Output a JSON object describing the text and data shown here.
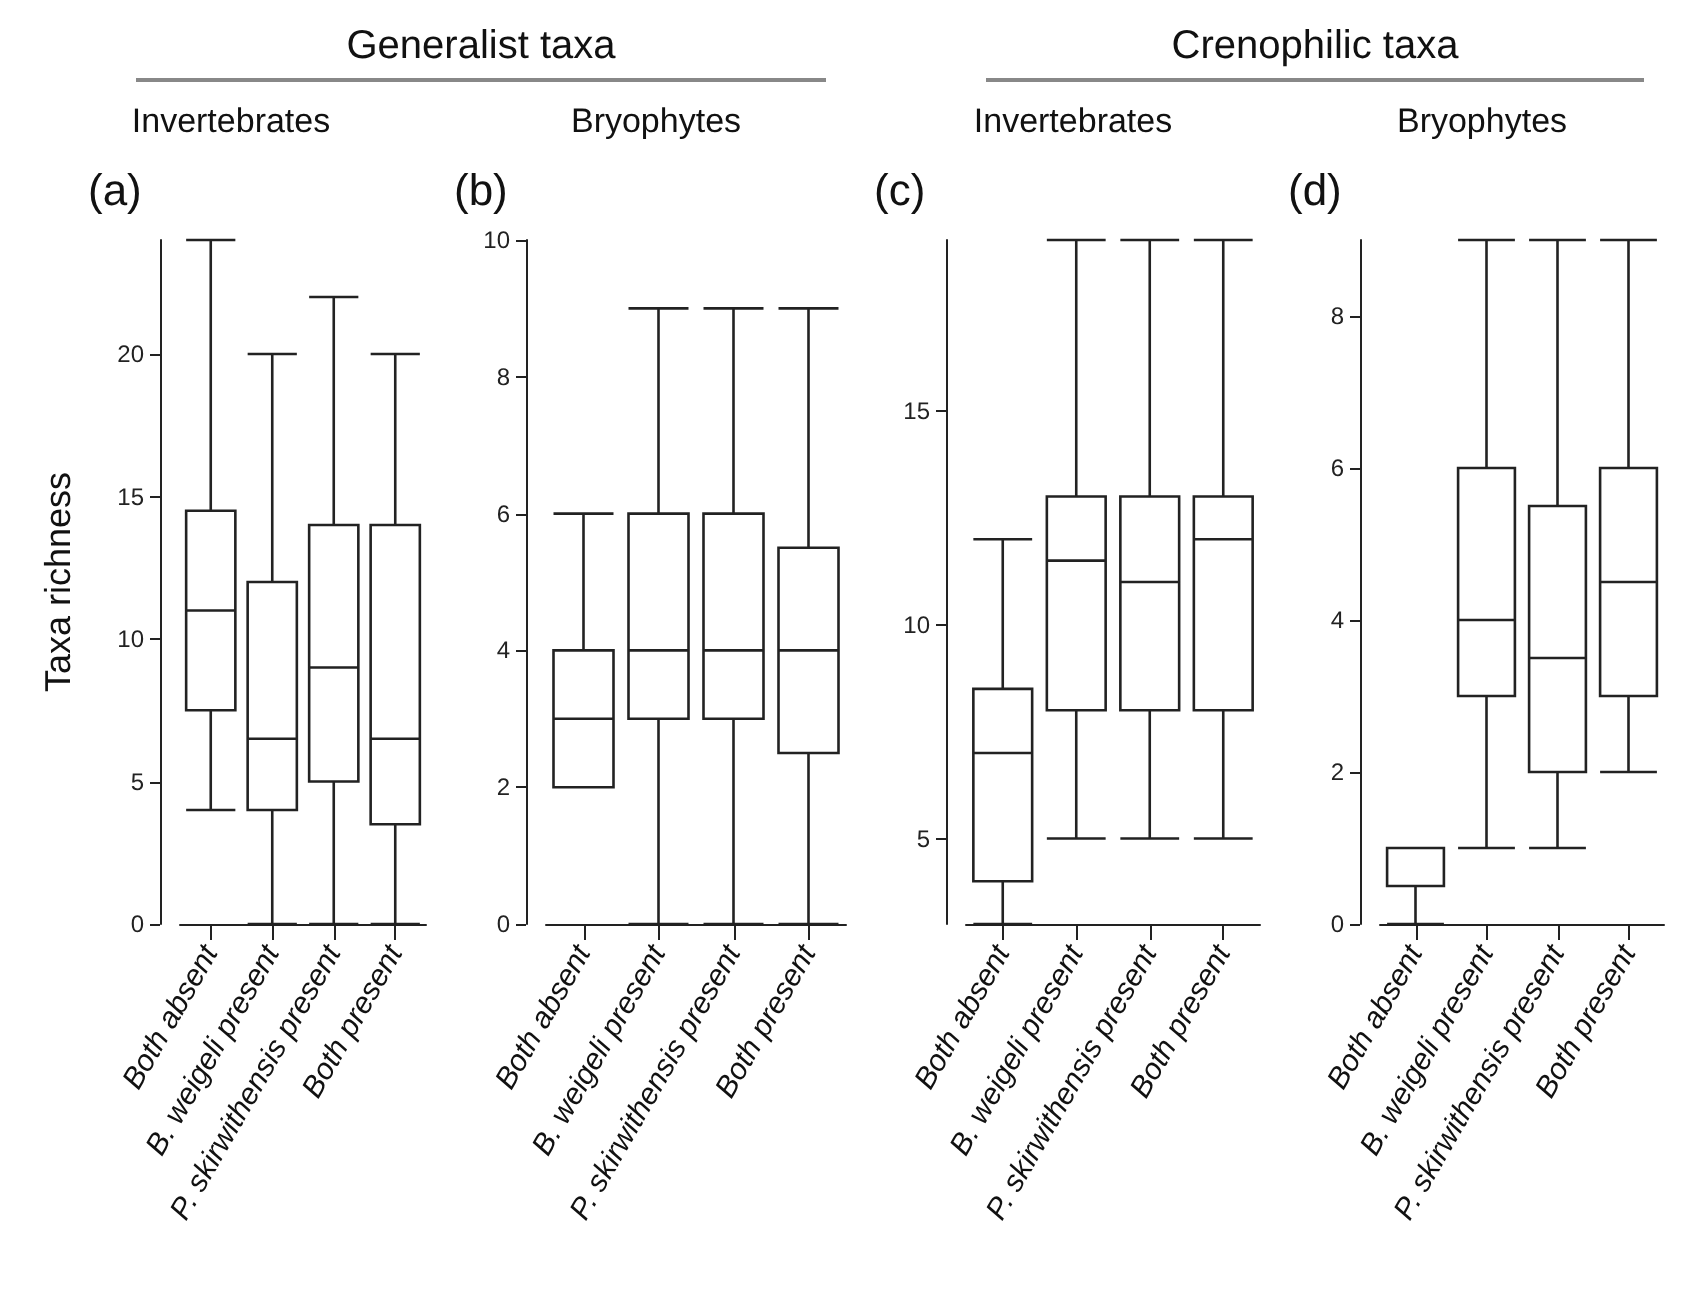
{
  "chart_data": [
    {
      "type": "box",
      "title": "Generalist taxa",
      "subtitle": "Invertebrates",
      "ylabel": "Taxa richness",
      "annotations": [
        "(a)"
      ],
      "categories": [
        "Both absent",
        "B. weigeli present",
        "P. skirwithensis present",
        "Both present"
      ],
      "ylim": [
        0,
        24
      ],
      "yticks": [
        0,
        5,
        10,
        15,
        20
      ],
      "series": [
        {
          "color": "#222222",
          "boxes": [
            {
              "low": 4,
              "q1": 7.5,
              "median": 11,
              "q3": 14.5,
              "high": 24
            },
            {
              "low": 0,
              "q1": 4,
              "median": 6.5,
              "q3": 12,
              "high": 20
            },
            {
              "low": 0,
              "q1": 5,
              "median": 9,
              "q3": 14,
              "high": 22
            },
            {
              "low": 0,
              "q1": 3.5,
              "median": 6.5,
              "q3": 14,
              "high": 20
            }
          ]
        }
      ]
    },
    {
      "type": "box",
      "subtitle": "Bryophytes",
      "annotations": [
        "(b)"
      ],
      "categories": [
        "Both absent",
        "B. weigeli present",
        "P. skirwithensis present",
        "Both present"
      ],
      "ylim": [
        0,
        10
      ],
      "yticks": [
        0,
        2,
        4,
        6,
        8,
        10
      ],
      "series": [
        {
          "color": "#222222",
          "boxes": [
            {
              "low": 2,
              "q1": 2,
              "median": 3,
              "q3": 4,
              "high": 6
            },
            {
              "low": 0,
              "q1": 3,
              "median": 4,
              "q3": 6,
              "high": 9
            },
            {
              "low": 0,
              "q1": 3,
              "median": 4,
              "q3": 6,
              "high": 9
            },
            {
              "low": 0,
              "q1": 2.5,
              "median": 4,
              "q3": 5.5,
              "high": 9
            }
          ]
        }
      ]
    },
    {
      "type": "box",
      "title": "Crenophilic taxa",
      "subtitle": "Invertebrates",
      "annotations": [
        "(c)"
      ],
      "categories": [
        "Both absent",
        "B. weigeli present",
        "P. skirwithensis present",
        "Both present"
      ],
      "ylim": [
        3,
        19
      ],
      "yticks": [
        5,
        10,
        15
      ],
      "series": [
        {
          "color": "#222222",
          "boxes": [
            {
              "low": 3,
              "q1": 4,
              "median": 7,
              "q3": 8.5,
              "high": 12
            },
            {
              "low": 5,
              "q1": 8,
              "median": 11.5,
              "q3": 13,
              "high": 19
            },
            {
              "low": 5,
              "q1": 8,
              "median": 11,
              "q3": 13,
              "high": 19
            },
            {
              "low": 5,
              "q1": 8,
              "median": 12,
              "q3": 13,
              "high": 19
            }
          ]
        }
      ]
    },
    {
      "type": "box",
      "subtitle": "Bryophytes",
      "annotations": [
        "(d)"
      ],
      "categories": [
        "Both absent",
        "B. weigeli present",
        "P. skirwithensis present",
        "Both present"
      ],
      "ylim": [
        0,
        9
      ],
      "yticks": [
        0,
        2,
        4,
        6,
        8
      ],
      "series": [
        {
          "color": "#222222",
          "boxes": [
            {
              "low": 0,
              "q1": 0.5,
              "median": 1,
              "q3": 1,
              "high": 1
            },
            {
              "low": 1,
              "q1": 3,
              "median": 4,
              "q3": 6,
              "high": 9
            },
            {
              "low": 1,
              "q1": 2,
              "median": 3.5,
              "q3": 5.5,
              "high": 9
            },
            {
              "low": 2,
              "q1": 3,
              "median": 4.5,
              "q3": 6,
              "high": 9
            }
          ]
        }
      ]
    }
  ]
}
